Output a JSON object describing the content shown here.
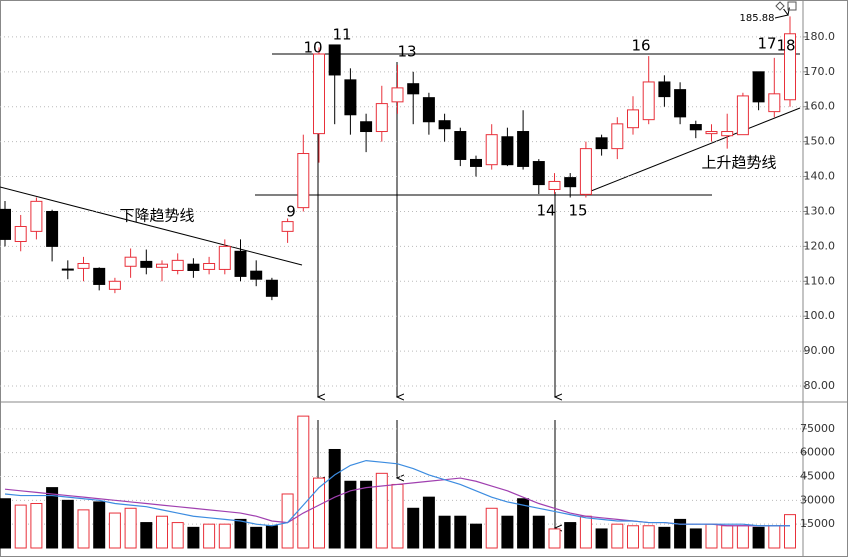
{
  "chart_data": [
    {
      "type": "candlestick",
      "up_color": "#e8303a",
      "down_color": "#000000",
      "open": [
        130.6,
        121.4,
        124.3,
        130,
        113.5,
        113.7,
        113.7,
        107.7,
        114.3,
        115.7,
        114,
        113.1,
        114.9,
        113.4,
        113.4,
        118.6,
        112.9,
        110.3,
        124.3,
        131.1,
        152.3,
        177.7,
        167.7,
        155.7,
        152.9,
        161.4,
        166.6,
        162.6,
        156,
        152.9,
        144.9,
        143.4,
        151.4,
        152.9,
        144.3,
        136.3,
        139.7,
        134.9,
        151.1,
        148,
        154,
        156.3,
        167.1,
        164.9,
        154.9,
        152.3,
        151.7,
        152,
        170,
        158.6,
        162
      ],
      "high": [
        133,
        129,
        134,
        130.5,
        116,
        117,
        114,
        111,
        119.4,
        119.1,
        116,
        118,
        116.6,
        117,
        122,
        122,
        116,
        111,
        128,
        152,
        177,
        177.7,
        171,
        158,
        166,
        172,
        170,
        164,
        158,
        154,
        146,
        155,
        154,
        159,
        145,
        141,
        141,
        150,
        152,
        157,
        163,
        174.5,
        169,
        167,
        156,
        155,
        158,
        164,
        170,
        174,
        185.88
      ],
      "low": [
        120,
        118.6,
        122,
        115.7,
        110.6,
        110,
        107.4,
        106.6,
        111,
        112,
        110,
        112,
        111,
        112,
        112,
        110,
        108.6,
        104.6,
        121,
        130,
        144,
        155,
        152,
        147,
        150,
        158,
        155,
        152,
        150,
        143,
        140,
        142,
        143,
        142,
        135,
        135,
        134,
        134,
        146,
        145,
        152,
        155,
        160,
        155,
        151,
        150,
        148,
        152,
        159,
        157,
        160
      ],
      "close": [
        122,
        125.7,
        132.9,
        120,
        113.4,
        115.1,
        109.1,
        110,
        116.9,
        114,
        114.9,
        116,
        113.1,
        115.1,
        120,
        111.4,
        110.6,
        105.7,
        127.1,
        146.6,
        175.1,
        169.1,
        157.7,
        152.9,
        160.9,
        165.4,
        163.7,
        155.7,
        153.7,
        144.9,
        142.9,
        152,
        143.4,
        142.9,
        137.7,
        138.6,
        137.1,
        148,
        148,
        155.1,
        159.1,
        167.1,
        162.9,
        157.1,
        153.4,
        152.9,
        152.9,
        163.1,
        161.4,
        163.7,
        180.9
      ],
      "ylim": [
        76,
        190
      ],
      "yticks": [
        {
          "value": 80,
          "label": "80.00"
        },
        {
          "value": 90,
          "label": "90.00"
        },
        {
          "value": 100,
          "label": "100.0"
        },
        {
          "value": 110,
          "label": "110.0"
        },
        {
          "value": 120,
          "label": "120.0"
        },
        {
          "value": 130,
          "label": "130.0"
        },
        {
          "value": 140,
          "label": "140.0"
        },
        {
          "value": 150,
          "label": "150.0"
        },
        {
          "value": 160,
          "label": "160.0"
        },
        {
          "value": 170,
          "label": "170.0"
        },
        {
          "value": 180,
          "label": "180.0"
        }
      ],
      "grid": true,
      "annotations": [
        "9",
        "10",
        "11",
        "13",
        "14",
        "15",
        "16",
        "17",
        "18",
        "下降趋势线",
        "上升趋势线",
        "185.88"
      ]
    },
    {
      "type": "bar",
      "values": [
        31000,
        27000,
        28000,
        38000,
        30000,
        24000,
        29000,
        22000,
        25000,
        16000,
        20000,
        16000,
        13000,
        15000,
        15000,
        18000,
        13000,
        14000,
        34000,
        83000,
        44000,
        62000,
        42000,
        42000,
        47000,
        40000,
        25000,
        32000,
        20000,
        20000,
        15000,
        25000,
        20000,
        31000,
        20000,
        12000,
        16000,
        20000,
        12000,
        15000,
        14000,
        14000,
        13000,
        18000,
        12000,
        15000,
        14000,
        14000,
        13000,
        14000,
        21000
      ],
      "lines": [
        {
          "color": "#a040b0",
          "values": [
            37000,
            36000,
            35000,
            34000,
            33000,
            32000,
            31000,
            30000,
            29000,
            28000,
            27000,
            26000,
            25000,
            24000,
            23000,
            22000,
            20000,
            17000,
            16000,
            22000,
            27000,
            32000,
            36000,
            38000,
            39000,
            40000,
            41000,
            42000,
            43000,
            44000,
            42000,
            39000,
            36000,
            32000,
            28000,
            25000,
            22000,
            20000,
            19000,
            18000,
            17000,
            16000,
            16000,
            15000,
            15000,
            15000,
            14000,
            14000,
            14000,
            14000,
            14000
          ]
        },
        {
          "color": "#3c8ce0",
          "values": [
            34000,
            33000,
            33000,
            33000,
            32000,
            31000,
            30000,
            28000,
            27000,
            26000,
            24000,
            22000,
            20000,
            19000,
            18000,
            17000,
            15000,
            14000,
            16000,
            27000,
            38000,
            46000,
            52000,
            55000,
            54000,
            53000,
            50000,
            46000,
            43000,
            40000,
            36000,
            32000,
            29000,
            27000,
            25000,
            23000,
            21000,
            19000,
            18000,
            17000,
            17000,
            16000,
            16000,
            15000,
            15000,
            15000,
            15000,
            15000,
            14000,
            14000,
            14000
          ]
        }
      ],
      "ylim": [
        0,
        90000
      ],
      "yticks": [
        15000,
        30000,
        45000,
        60000,
        75000
      ],
      "grid": true
    }
  ]
}
